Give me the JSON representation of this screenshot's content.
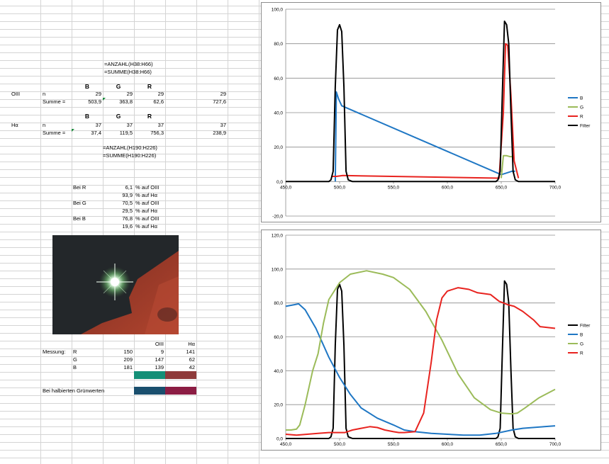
{
  "formulas": {
    "count_o3": "=ANZAHL(H38:H66)",
    "sum_o3": "=SUMME(H38:H66)",
    "count_ha": "=ANZAHL(H190:H226)",
    "sum_ha": "=SUMME(H190:H226)"
  },
  "o3_block": {
    "label": "OIII",
    "headers": [
      "B",
      "G",
      "R"
    ],
    "row_n": {
      "label": "n",
      "values": [
        "29",
        "29",
        "29",
        "29"
      ]
    },
    "row_sum": {
      "label": "Summe =",
      "values": [
        "503,9",
        "363,8",
        "62,6",
        "727,6"
      ]
    }
  },
  "ha_block": {
    "label": "Hα",
    "headers": [
      "B",
      "G",
      "R"
    ],
    "row_n": {
      "label": "n",
      "values": [
        "37",
        "37",
        "37",
        "37"
      ]
    },
    "row_sum": {
      "label": "Summe =",
      "values": [
        "37,4",
        "119,5",
        "756,3",
        "238,9"
      ]
    }
  },
  "ratios": [
    {
      "label": "Bei R",
      "value": "6,1",
      "text": "% auf OIII"
    },
    {
      "label": "",
      "value": "93,9",
      "text": "% auf Hα"
    },
    {
      "label": "Bei G",
      "value": "70,5",
      "text": "% auf OIII"
    },
    {
      "label": "",
      "value": "29,5",
      "text": "% auf Hα"
    },
    {
      "label": "Bei B",
      "value": "76,8",
      "text": "% auf OIII"
    },
    {
      "label": "",
      "value": "19,6",
      "text": "% auf Hα"
    }
  ],
  "measure": {
    "col_headers": [
      "OIII",
      "Hα"
    ],
    "label": "Messung:",
    "rows": [
      {
        "ch": "R",
        "v": [
          "150",
          "9",
          "141"
        ]
      },
      {
        "ch": "G",
        "v": [
          "209",
          "147",
          "62"
        ]
      },
      {
        "ch": "B",
        "v": [
          "181",
          "139",
          "42"
        ]
      }
    ],
    "half_label": "Bei halbierten Grünwerten"
  },
  "colors": {
    "swatch1_o3": "#148f77",
    "swatch1_ha": "#8e3a3a",
    "swatch2_o3": "#1a4f6e",
    "swatch2_ha": "#8c1d44",
    "series_B": "#1f77c4",
    "series_G": "#9bbb59",
    "series_R": "#e8231f",
    "series_Filter": "#000000"
  },
  "chart_data": [
    {
      "type": "line",
      "xlim": [
        450,
        700
      ],
      "ylim": [
        -20,
        100
      ],
      "x_ticks": [
        "450,0",
        "500,0",
        "550,0",
        "600,0",
        "650,0",
        "700,0"
      ],
      "y_ticks": [
        "-20,0",
        "0,0",
        "20,0",
        "40,0",
        "60,0",
        "80,0",
        "100,0"
      ],
      "grid": true,
      "legend": "right",
      "series": [
        {
          "name": "B",
          "color": "#1f77c4",
          "x": [
            496,
            497,
            499,
            502,
            650,
            655,
            660,
            663
          ],
          "y": [
            0,
            52,
            48,
            44,
            4,
            5,
            6,
            6
          ]
        },
        {
          "name": "G",
          "color": "#9bbb59",
          "x": [
            650,
            652,
            655,
            658,
            661
          ],
          "y": [
            2,
            15,
            15,
            14.5,
            14.5
          ]
        },
        {
          "name": "R",
          "color": "#e8231f",
          "x": [
            493,
            497,
            503,
            648,
            652,
            654,
            656,
            659,
            662,
            666
          ],
          "y": [
            3,
            3,
            3.5,
            2,
            40,
            80,
            79,
            50,
            12,
            2
          ]
        },
        {
          "name": "Filter",
          "color": "#000000",
          "x": [
            450,
            490,
            492,
            494,
            496,
            498,
            500,
            502,
            504,
            506,
            508,
            512,
            640,
            645,
            647,
            649,
            651,
            653,
            655,
            657,
            659,
            661,
            663,
            666,
            700
          ],
          "y": [
            0,
            0,
            1,
            6,
            55,
            88,
            91,
            87,
            55,
            6,
            1,
            0,
            0,
            0,
            1,
            6,
            50,
            93,
            91,
            80,
            40,
            6,
            1,
            0,
            0
          ]
        }
      ]
    },
    {
      "type": "line",
      "xlim": [
        450,
        700
      ],
      "ylim": [
        0,
        120
      ],
      "x_ticks": [
        "450,0",
        "500,0",
        "550,0",
        "600,0",
        "650,0",
        "700,0"
      ],
      "y_ticks": [
        "0,0",
        "20,0",
        "40,0",
        "60,0",
        "80,0",
        "100,0",
        "120,0"
      ],
      "grid": true,
      "legend": "right",
      "series": [
        {
          "name": "Filter",
          "color": "#000000",
          "x": [
            450,
            490,
            492,
            494,
            496,
            498,
            500,
            502,
            504,
            506,
            508,
            512,
            640,
            645,
            647,
            649,
            651,
            653,
            655,
            657,
            659,
            661,
            663,
            666,
            700
          ],
          "y": [
            0,
            0,
            1,
            6,
            55,
            88,
            91,
            87,
            55,
            6,
            1,
            0,
            0,
            0,
            1,
            6,
            50,
            93,
            91,
            80,
            40,
            6,
            1,
            0,
            0
          ]
        },
        {
          "name": "B",
          "color": "#1f77c4",
          "x": [
            450,
            458,
            462,
            468,
            478,
            490,
            500,
            510,
            520,
            535,
            550,
            560,
            570,
            585,
            600,
            615,
            630,
            645,
            660,
            670,
            690,
            700
          ],
          "y": [
            78,
            79,
            79.5,
            76,
            65,
            48,
            36,
            26,
            18,
            12,
            8,
            5,
            4,
            3,
            2.5,
            2,
            2,
            3,
            5,
            6,
            7,
            7.5
          ]
        },
        {
          "name": "G",
          "color": "#9bbb59",
          "x": [
            450,
            455,
            460,
            463,
            468,
            475,
            480,
            485,
            490,
            500,
            510,
            525,
            540,
            550,
            565,
            580,
            595,
            610,
            625,
            640,
            650,
            660,
            665,
            672,
            685,
            700
          ],
          "y": [
            5,
            5,
            5.5,
            8,
            20,
            40,
            50,
            68,
            82,
            92,
            97,
            99,
            97,
            95,
            88,
            75,
            58,
            38,
            24,
            17,
            15,
            14.5,
            15,
            18,
            24,
            29
          ]
        },
        {
          "name": "R",
          "color": "#e8231f",
          "x": [
            450,
            460,
            470,
            480,
            490,
            497,
            505,
            512,
            520,
            528,
            535,
            542,
            550,
            555,
            560,
            570,
            578,
            585,
            590,
            595,
            600,
            610,
            620,
            628,
            640,
            648,
            656,
            662,
            670,
            680,
            686,
            700
          ],
          "y": [
            2.5,
            2,
            2.5,
            3,
            3.5,
            3.5,
            3.5,
            5,
            6,
            7,
            6.5,
            5,
            4,
            3.5,
            3.5,
            4,
            15,
            45,
            70,
            83,
            87,
            89,
            88,
            86,
            85,
            81,
            79,
            78,
            75,
            70,
            66,
            65
          ]
        }
      ]
    }
  ]
}
